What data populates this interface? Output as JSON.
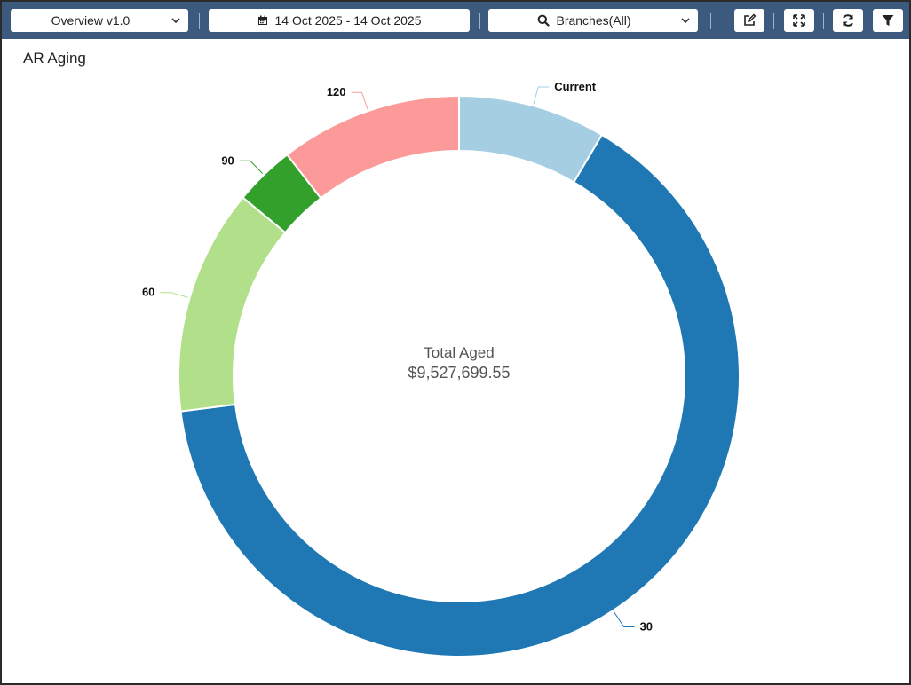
{
  "toolbar": {
    "view_select": "Overview v1.0",
    "date_range": "14 Oct 2025 - 14 Oct 2025",
    "branch_select": "Branches(All)",
    "icons": [
      "calendar-icon",
      "search-icon",
      "edit-icon",
      "expand-icon",
      "refresh-icon",
      "filter-icon"
    ]
  },
  "card": {
    "title": "AR Aging"
  },
  "chart_data": {
    "type": "pie",
    "style": "donut",
    "title": "AR Aging",
    "center_text": {
      "line1": "Total Aged",
      "line2": "$9,527,699.55"
    },
    "slices": [
      {
        "label": "Current",
        "value": 8.5,
        "color": "#a6cee3"
      },
      {
        "label": "30",
        "value": 64.5,
        "color": "#1f78b4"
      },
      {
        "label": "60",
        "value": 13,
        "color": "#b2df8a"
      },
      {
        "label": "90",
        "value": 3.5,
        "color": "#33a02c"
      },
      {
        "label": "120",
        "value": 10.5,
        "color": "#fb9a99"
      }
    ]
  }
}
